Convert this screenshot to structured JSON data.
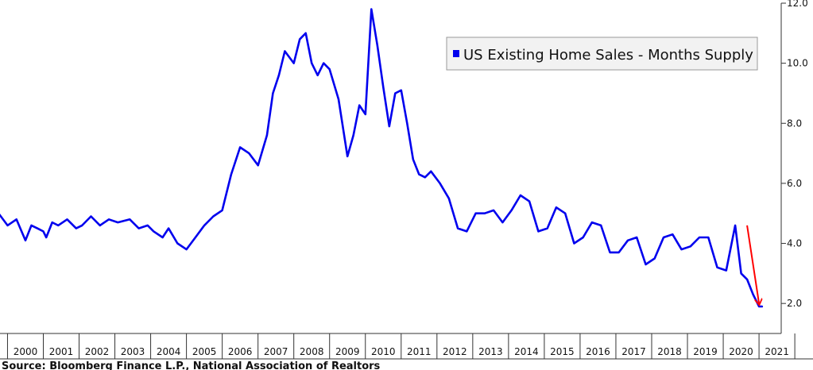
{
  "chart_data": {
    "type": "line",
    "title": "",
    "xlabel": "",
    "ylabel": "",
    "ylim": [
      1.0,
      12.0
    ],
    "xlim": [
      "2000-01",
      "2021-07"
    ],
    "y_ticks": [
      "2.0",
      "4.0",
      "6.0",
      "8.0",
      "10.0",
      "12.0"
    ],
    "y_tick_values": [
      2,
      4,
      6,
      8,
      10,
      12
    ],
    "x_ticks": [
      "2000",
      "2001",
      "2002",
      "2003",
      "2004",
      "2005",
      "2006",
      "2007",
      "2008",
      "2009",
      "2010",
      "2011",
      "2012",
      "2013",
      "2014",
      "2015",
      "2016",
      "2017",
      "2018",
      "2019",
      "2020",
      "2021"
    ],
    "y_axis_side": "right",
    "grid": false,
    "legend": {
      "position": "top-right",
      "entries": [
        "US Existing Home Sales - Months Supply"
      ]
    },
    "annotations": [
      {
        "type": "arrow",
        "color": "#ff0000",
        "from": [
          "2020-09",
          4.6
        ],
        "to": [
          "2021-01",
          2.0
        ]
      }
    ],
    "series": [
      {
        "name": "US Existing Home Sales - Months Supply",
        "color": "#0000ee",
        "x": [
          "1999-10",
          "2000-01",
          "2000-04",
          "2000-07",
          "2000-09",
          "2000-11",
          "2001-01",
          "2001-02",
          "2001-04",
          "2001-06",
          "2001-09",
          "2001-12",
          "2002-02",
          "2002-05",
          "2002-08",
          "2002-11",
          "2003-02",
          "2003-06",
          "2003-09",
          "2003-12",
          "2004-02",
          "2004-05",
          "2004-07",
          "2004-10",
          "2005-01",
          "2005-04",
          "2005-07",
          "2005-10",
          "2006-01",
          "2006-04",
          "2006-07",
          "2006-10",
          "2007-01",
          "2007-04",
          "2007-06",
          "2007-08",
          "2007-10",
          "2008-01",
          "2008-03",
          "2008-05",
          "2008-07",
          "2008-09",
          "2008-11",
          "2009-01",
          "2009-04",
          "2009-07",
          "2009-09",
          "2009-11",
          "2010-01",
          "2010-03",
          "2010-05",
          "2010-07",
          "2010-09",
          "2010-11",
          "2011-01",
          "2011-03",
          "2011-05",
          "2011-07",
          "2011-09",
          "2011-11",
          "2012-02",
          "2012-05",
          "2012-08",
          "2012-11",
          "2013-02",
          "2013-05",
          "2013-08",
          "2013-11",
          "2014-02",
          "2014-05",
          "2014-08",
          "2014-11",
          "2015-02",
          "2015-05",
          "2015-08",
          "2015-11",
          "2016-02",
          "2016-05",
          "2016-08",
          "2016-11",
          "2017-02",
          "2017-05",
          "2017-08",
          "2017-11",
          "2018-02",
          "2018-05",
          "2018-08",
          "2018-11",
          "2019-02",
          "2019-05",
          "2019-08",
          "2019-11",
          "2020-02",
          "2020-05",
          "2020-07",
          "2020-09",
          "2020-11",
          "2021-01",
          "2021-02"
        ],
        "values": [
          5.0,
          4.6,
          4.8,
          4.1,
          4.6,
          4.5,
          4.4,
          4.2,
          4.7,
          4.6,
          4.8,
          4.5,
          4.6,
          4.9,
          4.6,
          4.8,
          4.7,
          4.8,
          4.5,
          4.6,
          4.4,
          4.2,
          4.5,
          4.0,
          3.8,
          4.2,
          4.6,
          4.9,
          5.1,
          6.3,
          7.2,
          7.0,
          6.6,
          7.6,
          9.0,
          9.6,
          10.4,
          10.0,
          10.8,
          11.0,
          10.0,
          9.6,
          10.0,
          9.8,
          8.8,
          6.9,
          7.6,
          8.6,
          8.3,
          11.8,
          10.6,
          9.2,
          7.9,
          9.0,
          9.1,
          8.0,
          6.8,
          6.3,
          6.2,
          6.4,
          6.0,
          5.5,
          4.5,
          4.4,
          5.0,
          5.0,
          5.1,
          4.7,
          5.1,
          5.6,
          5.4,
          4.4,
          4.5,
          5.2,
          5.0,
          4.0,
          4.2,
          4.7,
          4.6,
          3.7,
          3.7,
          4.1,
          4.2,
          3.3,
          3.5,
          4.2,
          4.3,
          3.8,
          3.9,
          4.2,
          4.2,
          3.2,
          3.1,
          4.6,
          3.0,
          2.8,
          2.3,
          1.9,
          1.9
        ]
      }
    ]
  },
  "source": "Source: Bloomberg Finance L.P., National Association of Realtors"
}
